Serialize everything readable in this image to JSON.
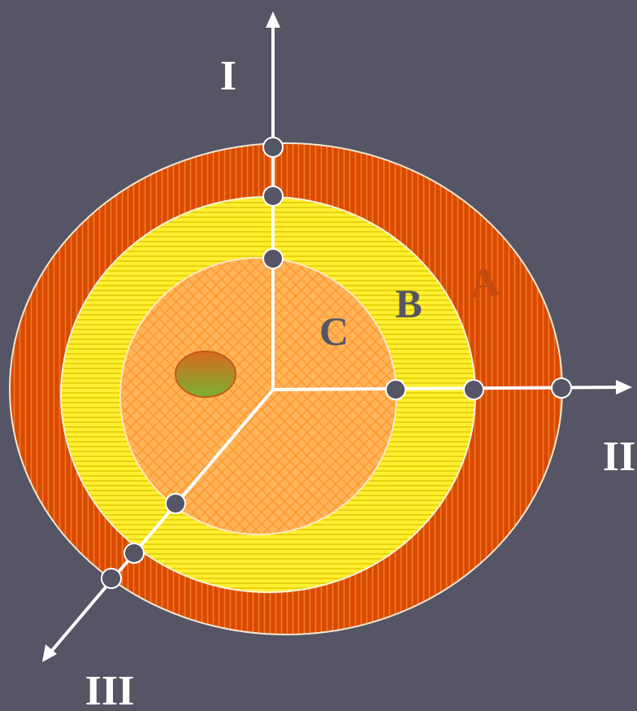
{
  "background_color": "#555566",
  "axes": {
    "I": {
      "label": "I"
    },
    "II": {
      "label": "II"
    },
    "III": {
      "label": "III"
    }
  },
  "zones": [
    {
      "id": "A",
      "label": "A",
      "fill": "#d94a00",
      "stripe": "#f07020",
      "label_color": "#c44a10"
    },
    {
      "id": "B",
      "label": "B",
      "fill": "#ffee22",
      "stripe": "#e6c800",
      "label_color": "#555566"
    },
    {
      "id": "C",
      "label": "C",
      "fill": "#ffb050",
      "stripe": "#ff9a3a",
      "label_color": "#555566"
    }
  ],
  "marker_color": "#555566",
  "spot_colors": [
    "#d86a20",
    "#7ab030"
  ]
}
